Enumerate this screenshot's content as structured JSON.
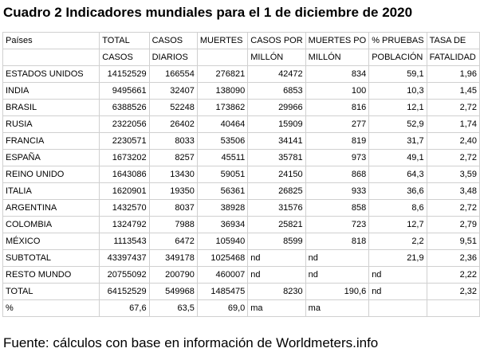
{
  "title": "Cuadro 2 Indicadores mundiales para el 1 de diciembre de 2020",
  "header_rows": [
    [
      "Países",
      "TOTAL",
      "CASOS",
      "MUERTES",
      "CASOS POR",
      "MUERTES PO",
      "% PRUEBAS",
      "TASA DE"
    ],
    [
      "",
      "CASOS",
      "DIARIOS",
      "",
      "MILLÓN",
      "MILLÓN",
      "POBLACIÓN",
      "FATALIDAD"
    ]
  ],
  "rows": [
    [
      "ESTADOS UNIDOS",
      "14152529",
      "166554",
      "276821",
      "42472",
      "834",
      "59,1",
      "1,96"
    ],
    [
      "INDIA",
      "9495661",
      "32407",
      "138090",
      "6853",
      "100",
      "10,3",
      "1,45"
    ],
    [
      "BRASIL",
      "6388526",
      "52248",
      "173862",
      "29966",
      "816",
      "12,1",
      "2,72"
    ],
    [
      "RUSIA",
      "2322056",
      "26402",
      "40464",
      "15909",
      "277",
      "52,9",
      "1,74"
    ],
    [
      "FRANCIA",
      "2230571",
      "8033",
      "53506",
      "34141",
      "819",
      "31,7",
      "2,40"
    ],
    [
      "ESPAÑA",
      "1673202",
      "8257",
      "45511",
      "35781",
      "973",
      "49,1",
      "2,72"
    ],
    [
      "REINO UNIDO",
      "1643086",
      "13430",
      "59051",
      "24150",
      "868",
      "64,3",
      "3,59"
    ],
    [
      "ITALIA",
      "1620901",
      "19350",
      "56361",
      "26825",
      "933",
      "36,6",
      "3,48"
    ],
    [
      "ARGENTINA",
      "1432570",
      "8037",
      "38928",
      "31576",
      "858",
      "8,6",
      "2,72"
    ],
    [
      "COLOMBIA",
      "1324792",
      "7988",
      "36934",
      "25821",
      "723",
      "12,7",
      "2,79"
    ],
    [
      "MÉXICO",
      "1113543",
      "6472",
      "105940",
      "8599",
      "818",
      "2,2",
      "9,51"
    ],
    [
      "SUBTOTAL",
      "43397437",
      "349178",
      "1025468",
      "nd",
      "nd",
      "21,9",
      "2,36"
    ],
    [
      "RESTO MUNDO",
      "20755092",
      "200790",
      "460007",
      "nd",
      "nd",
      "nd",
      "2,22"
    ],
    [
      "TOTAL",
      "64152529",
      "549968",
      "1485475",
      "8230",
      "190,6",
      "nd",
      "2,32"
    ],
    [
      "%",
      "67,6",
      "63,5",
      "69,0",
      "ma",
      "ma",
      "",
      ""
    ]
  ],
  "footer": "Fuente: cálculos con base en información de Worldmeters.info"
}
